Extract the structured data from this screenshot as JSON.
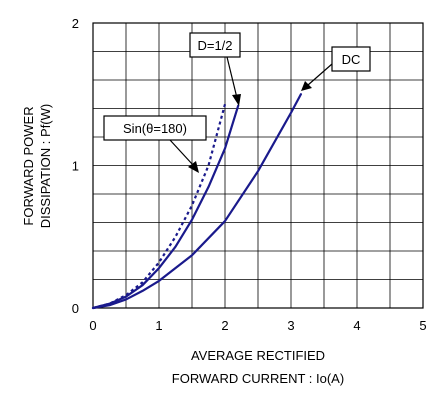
{
  "chart_data": {
    "type": "line",
    "title": "",
    "xlabel_lines": [
      "AVERAGE RECTIFIED",
      "FORWARD CURRENT : Io(A)"
    ],
    "ylabel_lines": [
      "FORWARD POWER",
      "DISSIPATION : Pf(W)"
    ],
    "xlim": [
      0,
      5
    ],
    "ylim": [
      0,
      2
    ],
    "x_ticks": [
      "0",
      "1",
      "2",
      "3",
      "4",
      "5"
    ],
    "y_ticks": [
      "0",
      "1",
      "2"
    ],
    "grid": true,
    "series_color": "#1a1a8c",
    "series": [
      {
        "name": "DC",
        "style": "solid",
        "points": [
          [
            0,
            0
          ],
          [
            0.25,
            0.02
          ],
          [
            0.5,
            0.06
          ],
          [
            0.75,
            0.12
          ],
          [
            1.0,
            0.19
          ],
          [
            1.5,
            0.37
          ],
          [
            2.0,
            0.61
          ],
          [
            2.5,
            0.96
          ],
          [
            3.0,
            1.37
          ],
          [
            3.15,
            1.5
          ]
        ]
      },
      {
        "name": "D=1/2",
        "style": "solid",
        "points": [
          [
            0,
            0
          ],
          [
            0.25,
            0.03
          ],
          [
            0.5,
            0.08
          ],
          [
            0.75,
            0.16
          ],
          [
            1.0,
            0.28
          ],
          [
            1.25,
            0.43
          ],
          [
            1.5,
            0.62
          ],
          [
            1.75,
            0.85
          ],
          [
            2.0,
            1.12
          ],
          [
            2.2,
            1.42
          ]
        ]
      },
      {
        "name": "Sin(θ=180)",
        "style": "dotted",
        "points": [
          [
            0,
            0
          ],
          [
            0.25,
            0.03
          ],
          [
            0.5,
            0.09
          ],
          [
            0.75,
            0.18
          ],
          [
            1.0,
            0.32
          ],
          [
            1.25,
            0.5
          ],
          [
            1.5,
            0.72
          ],
          [
            1.75,
            1.0
          ],
          [
            2.0,
            1.43
          ]
        ]
      }
    ],
    "annotations": [
      {
        "text": "D=1/2"
      },
      {
        "text": "DC"
      },
      {
        "text": "Sin(θ=180)"
      }
    ]
  }
}
